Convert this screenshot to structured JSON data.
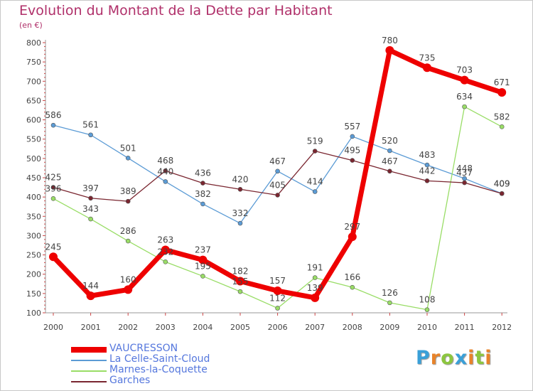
{
  "header": {
    "title": "Evolution du Montant de la Dette par Habitant",
    "subtitle": "(en €)"
  },
  "logo": {
    "text": "Proxiti",
    "letters": [
      "P",
      "r",
      "o",
      "x",
      "i",
      "t",
      "i"
    ],
    "colors": [
      "#3aa0d8",
      "#e8832a",
      "#8cc63f",
      "#3aa0d8",
      "#e8832a",
      "#8cc63f",
      "#e8832a"
    ]
  },
  "chart_data": {
    "type": "line",
    "title": "Evolution du Montant de la Dette par Habitant",
    "ylabel": "(en €)",
    "xlabel": "",
    "ylim": [
      100,
      800
    ],
    "yticks": [
      100,
      150,
      200,
      250,
      300,
      350,
      400,
      450,
      500,
      550,
      600,
      650,
      700,
      750,
      800
    ],
    "grid": false,
    "categories": [
      "2000",
      "2001",
      "2002",
      "2003",
      "2004",
      "2005",
      "2006",
      "2007",
      "2008",
      "2009",
      "2010",
      "2011",
      "2012"
    ],
    "legend_position": "bottom-left",
    "series": [
      {
        "name": "La Celle-Saint-Cloud",
        "color": "#5b9bd5",
        "values": [
          586,
          561,
          501,
          440,
          382,
          332,
          467,
          414,
          557,
          520,
          483,
          448,
          409
        ]
      },
      {
        "name": "Marnes-la-Coquette",
        "color": "#99dd66",
        "values": [
          396,
          343,
          286,
          232,
          195,
          155,
          112,
          191,
          166,
          126,
          108,
          634,
          582
        ]
      },
      {
        "name": "Garches",
        "color": "#7a2630",
        "values": [
          425,
          397,
          389,
          468,
          436,
          420,
          405,
          519,
          495,
          467,
          442,
          437,
          409
        ]
      },
      {
        "name": "VAUCRESSON",
        "color": "#ee0000",
        "values": [
          245,
          144,
          160,
          263,
          237,
          182,
          157,
          139,
          297,
          780,
          735,
          703,
          671
        ]
      }
    ],
    "legend_order": [
      "VAUCRESSON",
      "La Celle-Saint-Cloud",
      "Marnes-la-Coquette",
      "Garches"
    ]
  }
}
